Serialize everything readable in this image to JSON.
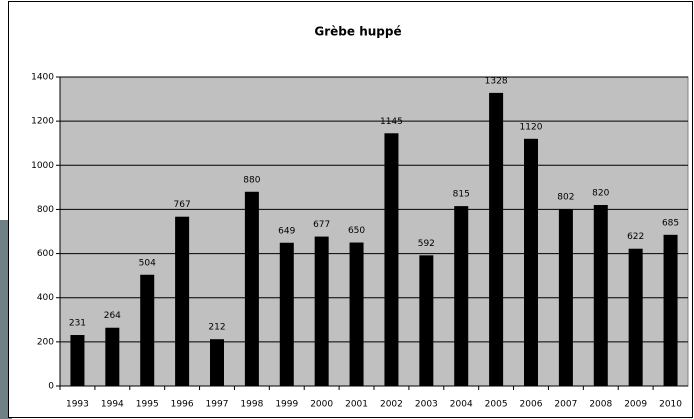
{
  "chart_data": {
    "type": "bar",
    "title": "Grèbe huppé",
    "categories": [
      "1993",
      "1994",
      "1995",
      "1996",
      "1997",
      "1998",
      "1999",
      "2000",
      "2001",
      "2002",
      "2003",
      "2004",
      "2005",
      "2006",
      "2007",
      "2008",
      "2009",
      "2010"
    ],
    "values": [
      231,
      264,
      504,
      767,
      212,
      880,
      649,
      677,
      650,
      1145,
      592,
      815,
      1328,
      1120,
      802,
      820,
      622,
      685
    ],
    "color": "#000000",
    "plot_background": "#c0c0c0",
    "ylim": [
      0,
      1400
    ],
    "yticks": [
      0,
      200,
      400,
      600,
      800,
      1000,
      1200,
      1400
    ],
    "grid": true,
    "data_labels": true
  }
}
